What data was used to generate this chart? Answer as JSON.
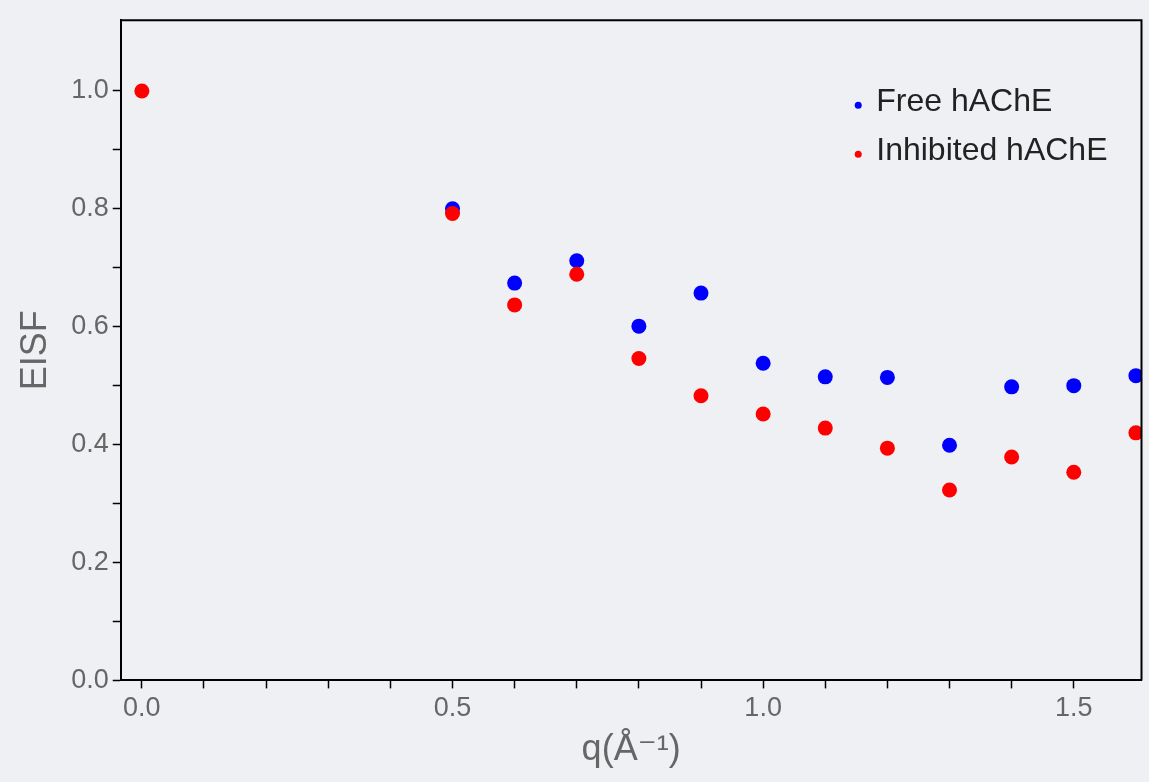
{
  "chart_data": {
    "type": "scatter",
    "xlabel": "q(Å⁻¹)",
    "ylabel": "EISF",
    "xlim": [
      -0.034,
      1.609
    ],
    "ylim": [
      0,
      1.12
    ],
    "xticks": [
      {
        "value": 0,
        "label": "0.0"
      },
      {
        "value": 0.1,
        "label": null
      },
      {
        "value": 0.2,
        "label": null
      },
      {
        "value": 0.3,
        "label": null
      },
      {
        "value": 0.4,
        "label": null
      },
      {
        "value": 0.5,
        "label": "0.5"
      },
      {
        "value": 0.6,
        "label": null
      },
      {
        "value": 0.7,
        "label": null
      },
      {
        "value": 0.8,
        "label": null
      },
      {
        "value": 0.9,
        "label": null
      },
      {
        "value": 1.0,
        "label": "1.0"
      },
      {
        "value": 1.1,
        "label": null
      },
      {
        "value": 1.2,
        "label": null
      },
      {
        "value": 1.3,
        "label": null
      },
      {
        "value": 1.4,
        "label": null
      },
      {
        "value": 1.5,
        "label": "1.5"
      }
    ],
    "yticks": [
      {
        "value": 0,
        "label": "0.0"
      },
      {
        "value": 0.1,
        "label": null
      },
      {
        "value": 0.2,
        "label": "0.2"
      },
      {
        "value": 0.3,
        "label": null
      },
      {
        "value": 0.4,
        "label": "0.4"
      },
      {
        "value": 0.5,
        "label": null
      },
      {
        "value": 0.6,
        "label": "0.6"
      },
      {
        "value": 0.7,
        "label": null
      },
      {
        "value": 0.8,
        "label": "0.8"
      },
      {
        "value": 0.9,
        "label": null
      },
      {
        "value": 1.0,
        "label": "1.0"
      }
    ],
    "grid": false,
    "legend": "top right",
    "marker": "circle",
    "x": [
      0,
      0.5,
      0.6,
      0.7,
      0.8,
      0.9,
      1.0,
      1.1,
      1.2,
      1.3,
      1.4,
      1.5,
      1.6
    ],
    "series": [
      {
        "name": "Free hAChE",
        "color": "#0000ff",
        "values": [
          null,
          0.8,
          0.674,
          0.712,
          0.601,
          0.657,
          0.538,
          0.515,
          0.514,
          0.399,
          0.498,
          0.5,
          0.517
        ]
      },
      {
        "name": "Inhibited hAChE",
        "color": "#ff0000",
        "values": [
          1.0,
          0.792,
          0.637,
          0.689,
          0.546,
          0.483,
          0.452,
          0.428,
          0.394,
          0.323,
          0.379,
          0.353,
          0.42
        ]
      }
    ]
  }
}
